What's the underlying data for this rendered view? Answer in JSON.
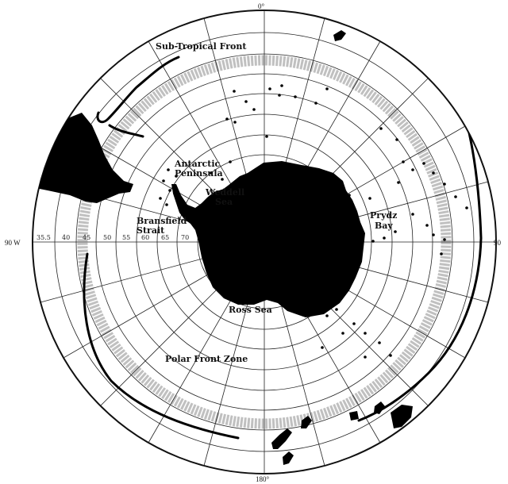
{
  "labels": {
    "subtropical_front": "Sub-Tropical Front",
    "antarctic_peninsula_line1": "Antarctic",
    "antarctic_peninsula_line2": "Peninsula",
    "weddell_line1": "Weddell",
    "weddell_line2": "Sea",
    "bransfield_line1": "Bransfield",
    "bransfield_line2": "Strait",
    "prydz_line1": "Prydz",
    "prydz_line2": "Bay",
    "ross_sea": "Ross Sea",
    "polar_front_zone": "Polar Front Zone"
  },
  "edge_labels": {
    "top": "0°",
    "left": "90 W",
    "right": "90",
    "bottom": "180°"
  },
  "latitude_ticks": [
    "35.5",
    "40",
    "45",
    "50",
    "55",
    "60",
    "65",
    "70"
  ],
  "colors": {
    "land": "#000000",
    "grid": "#222222",
    "zone_shading": "#aaaaaa",
    "stations": "#000000"
  }
}
